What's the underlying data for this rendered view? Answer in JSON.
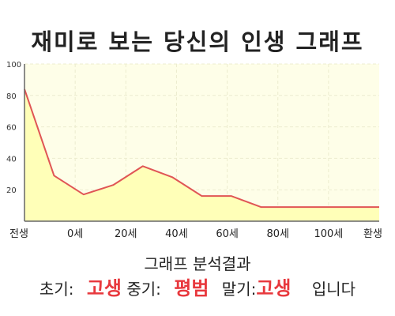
{
  "title": "재미로 보는 당신의 인생 그래프",
  "chart_data": {
    "type": "area",
    "title": "재미로 보는 당신의 인생 그래프",
    "xlabel": "",
    "ylabel": "",
    "x_tick_labels": [
      "전생",
      "0세",
      "20세",
      "40세",
      "60세",
      "80세",
      "100세",
      "환생"
    ],
    "y_ticks": [
      20,
      40,
      60,
      80,
      100
    ],
    "ylim": [
      0,
      100
    ],
    "grid": true,
    "series": [
      {
        "values": [
          84,
          29,
          17,
          23,
          35,
          28,
          16,
          16,
          9,
          9,
          9,
          9,
          9
        ]
      }
    ],
    "colors": {
      "line": "#e05555",
      "fill": "#ffffb8",
      "plot_bg": "#fefee8",
      "grid": "#ececcf"
    }
  },
  "analysis": {
    "title": "그래프 분석결과",
    "early_label": "초기:",
    "early_value": "고생",
    "middle_label": "중기:",
    "middle_value": "평범",
    "late_label": "말기:",
    "late_value": "고생",
    "suffix": "입니다",
    "value_color": "#e8383d"
  }
}
